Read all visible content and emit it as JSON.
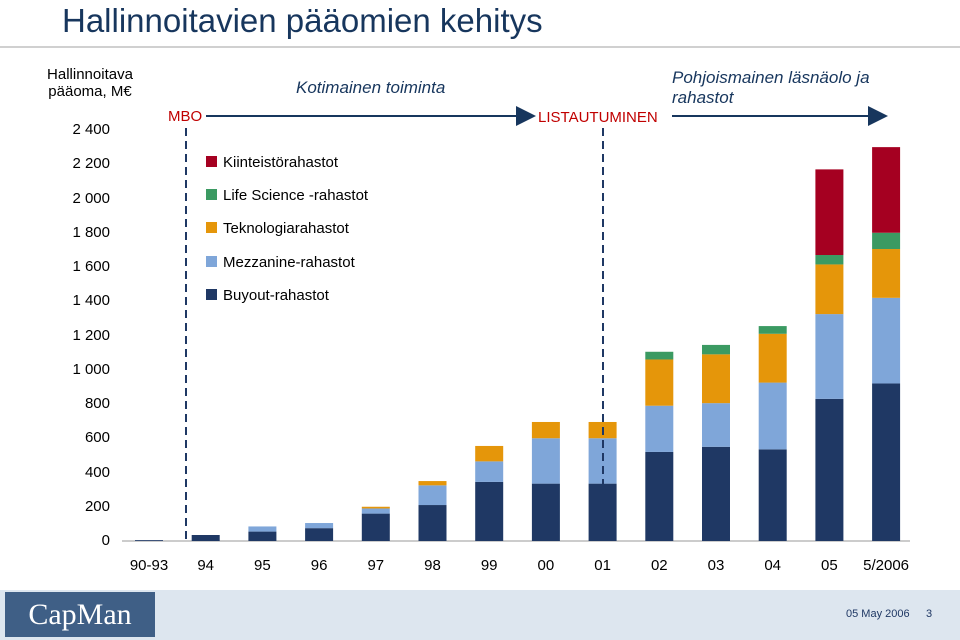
{
  "page": {
    "title": "Hallinnoitavien pääomien kehitys"
  },
  "chart_data": {
    "type": "bar",
    "stacked": true,
    "ylabel": "Hallinnoitava pääoma, M€",
    "ylim": [
      0,
      2400
    ],
    "yticks": [
      "0",
      "200",
      "400",
      "600",
      "800",
      "1 000",
      "1 200",
      "1 400",
      "1 600",
      "1 800",
      "2 000",
      "2 200",
      "2 400"
    ],
    "categories": [
      "90-93",
      "94",
      "95",
      "96",
      "97",
      "98",
      "99",
      "00",
      "01",
      "02",
      "03",
      "04",
      "05",
      "5/2006"
    ],
    "series": [
      {
        "name": "Buyout-rahastot",
        "color": "#1f3864",
        "values": [
          5,
          35,
          55,
          75,
          160,
          210,
          345,
          335,
          335,
          520,
          550,
          535,
          830,
          920
        ]
      },
      {
        "name": "Mezzanine-rahastot",
        "color": "#7fa6d9",
        "values": [
          0,
          0,
          30,
          30,
          30,
          115,
          120,
          265,
          265,
          270,
          255,
          390,
          495,
          500
        ]
      },
      {
        "name": "Teknologiarahastot",
        "color": "#e5960a",
        "values": [
          0,
          0,
          0,
          0,
          10,
          25,
          90,
          95,
          95,
          270,
          285,
          285,
          290,
          285
        ]
      },
      {
        "name": "Life Science -rahastot",
        "color": "#3b9a62",
        "values": [
          0,
          0,
          0,
          0,
          0,
          0,
          0,
          0,
          0,
          45,
          55,
          45,
          55,
          95
        ]
      },
      {
        "name": "Kiinteistörahastot",
        "color": "#a50021",
        "values": [
          0,
          0,
          0,
          0,
          0,
          0,
          0,
          0,
          0,
          0,
          0,
          0,
          500,
          500
        ]
      }
    ],
    "legend": [
      "Kiinteistörahastot",
      "Life Science -rahastot",
      "Teknologiarahastot",
      "Mezzanine-rahastot",
      "Buyout-rahastot"
    ],
    "annotations": {
      "mbo": "MBO",
      "domestic": "Kotimainen toiminta",
      "listing": "LISTAUTUMINEN",
      "nordic": "Pohjoismainen läsnäolo ja rahastot"
    },
    "colors": {
      "title": "#17365d",
      "markers": "#c00000",
      "divider": "#1f3864",
      "arrow": "#17365d"
    }
  },
  "footer": {
    "logo": "CapMan",
    "date": "05 May 2006",
    "page": "3"
  }
}
